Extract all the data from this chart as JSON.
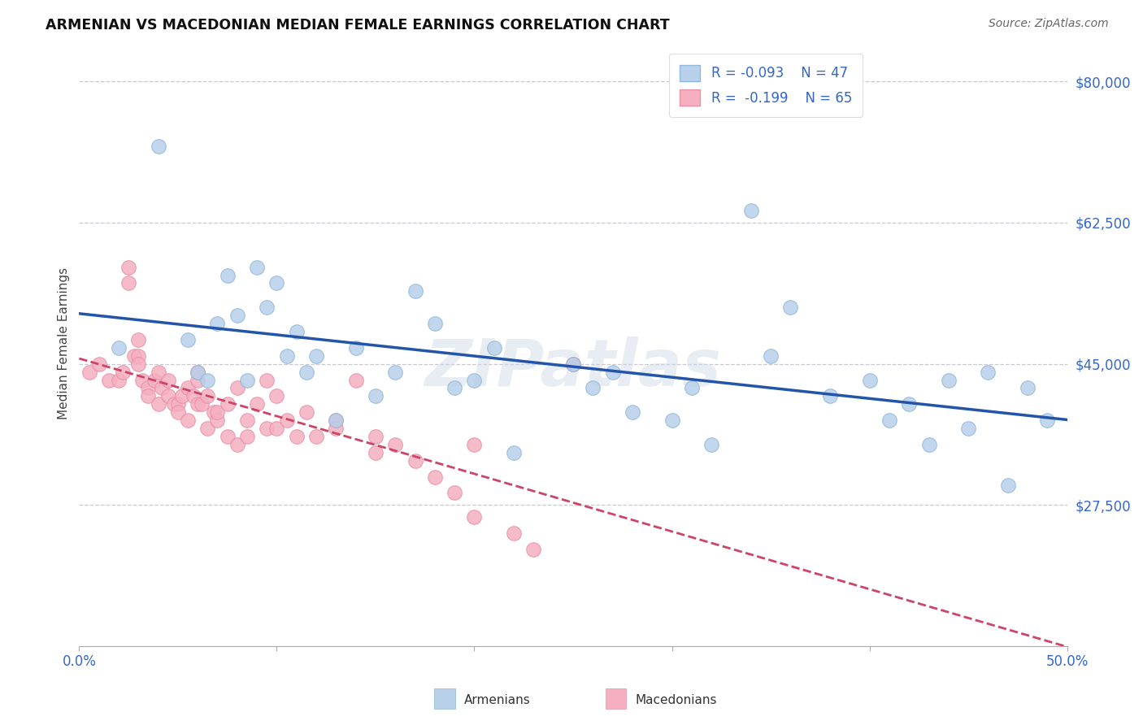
{
  "title": "ARMENIAN VS MACEDONIAN MEDIAN FEMALE EARNINGS CORRELATION CHART",
  "source": "Source: ZipAtlas.com",
  "ylabel": "Median Female Earnings",
  "xlim": [
    0.0,
    0.5
  ],
  "ylim": [
    10000,
    85000
  ],
  "yticks": [
    27500,
    45000,
    62500,
    80000
  ],
  "ytick_labels": [
    "$27,500",
    "$45,000",
    "$62,500",
    "$80,000"
  ],
  "xticks": [
    0.0,
    0.1,
    0.2,
    0.3,
    0.4,
    0.5
  ],
  "xtick_labels": [
    "0.0%",
    "",
    "",
    "",
    "",
    "50.0%"
  ],
  "grid_color": "#c8c8d0",
  "background_color": "#ffffff",
  "armenian_color": "#b8d0ea",
  "macedonian_color": "#f5afc0",
  "armenian_edge_color": "#90b8d8",
  "macedonian_edge_color": "#e890a8",
  "armenian_line_color": "#2255aa",
  "macedonian_line_color": "#cc4466",
  "legend_label_arm": "R = -0.093    N = 47",
  "legend_label_mac": "R =  -0.199    N = 65",
  "watermark": "ZIPatlas",
  "bottom_label_armenians": "Armenians",
  "bottom_label_macedonians": "Macedonians",
  "armenian_x": [
    0.02,
    0.04,
    0.055,
    0.06,
    0.065,
    0.07,
    0.075,
    0.08,
    0.085,
    0.09,
    0.095,
    0.1,
    0.11,
    0.115,
    0.12,
    0.13,
    0.14,
    0.15,
    0.16,
    0.17,
    0.18,
    0.19,
    0.2,
    0.21,
    0.22,
    0.25,
    0.26,
    0.27,
    0.28,
    0.3,
    0.31,
    0.32,
    0.34,
    0.36,
    0.38,
    0.4,
    0.41,
    0.42,
    0.43,
    0.44,
    0.45,
    0.46,
    0.47,
    0.48,
    0.49,
    0.105,
    0.35
  ],
  "armenian_y": [
    47000,
    72000,
    48000,
    44000,
    43000,
    50000,
    56000,
    51000,
    43000,
    57000,
    52000,
    55000,
    49000,
    44000,
    46000,
    38000,
    47000,
    41000,
    44000,
    54000,
    50000,
    42000,
    43000,
    47000,
    34000,
    45000,
    42000,
    44000,
    39000,
    38000,
    42000,
    35000,
    64000,
    52000,
    41000,
    43000,
    38000,
    40000,
    35000,
    43000,
    37000,
    44000,
    30000,
    42000,
    38000,
    46000,
    46000
  ],
  "macedonian_x": [
    0.005,
    0.01,
    0.015,
    0.02,
    0.022,
    0.025,
    0.025,
    0.028,
    0.03,
    0.03,
    0.03,
    0.032,
    0.035,
    0.035,
    0.038,
    0.04,
    0.04,
    0.042,
    0.045,
    0.045,
    0.048,
    0.05,
    0.05,
    0.052,
    0.055,
    0.055,
    0.058,
    0.06,
    0.06,
    0.062,
    0.065,
    0.065,
    0.068,
    0.07,
    0.07,
    0.075,
    0.075,
    0.08,
    0.08,
    0.085,
    0.085,
    0.09,
    0.095,
    0.1,
    0.1,
    0.105,
    0.11,
    0.115,
    0.12,
    0.13,
    0.14,
    0.15,
    0.16,
    0.17,
    0.18,
    0.19,
    0.2,
    0.22,
    0.23,
    0.25,
    0.13,
    0.15,
    0.2,
    0.095,
    0.06
  ],
  "macedonian_y": [
    44000,
    45000,
    43000,
    43000,
    44000,
    57000,
    55000,
    46000,
    48000,
    46000,
    45000,
    43000,
    42000,
    41000,
    43000,
    44000,
    40000,
    42000,
    43000,
    41000,
    40000,
    40000,
    39000,
    41000,
    42000,
    38000,
    41000,
    43000,
    40000,
    40000,
    41000,
    37000,
    39000,
    38000,
    39000,
    40000,
    36000,
    42000,
    35000,
    38000,
    36000,
    40000,
    37000,
    41000,
    37000,
    38000,
    36000,
    39000,
    36000,
    38000,
    43000,
    36000,
    35000,
    33000,
    31000,
    29000,
    26000,
    24000,
    22000,
    45000,
    37000,
    34000,
    35000,
    43000,
    44000
  ]
}
